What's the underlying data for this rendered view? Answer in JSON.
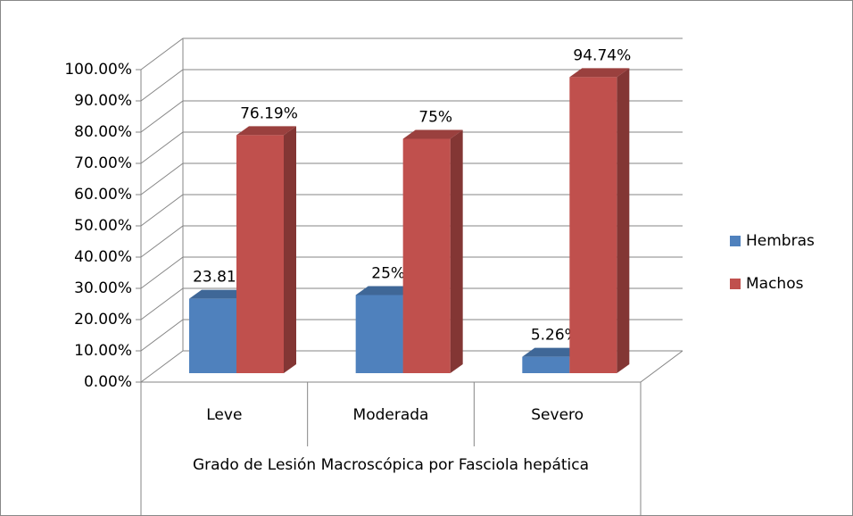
{
  "chart_data": {
    "type": "bar3d",
    "categories": [
      "Leve",
      "Moderada",
      "Severo"
    ],
    "series": [
      {
        "name": "Hembras",
        "color": "#4f81bd",
        "values": [
          23.81,
          25,
          5.26
        ],
        "value_labels": [
          "23.81%",
          "25%",
          "5.26%"
        ]
      },
      {
        "name": "Machos",
        "color": "#c0504d",
        "values": [
          76.19,
          75,
          94.74
        ],
        "value_labels": [
          "76.19%",
          "75%",
          "94.74%"
        ]
      }
    ],
    "x_label": "Grado de Lesión Macroscópica por Fasciola hepática",
    "ylim": [
      0,
      100
    ],
    "yticks": [
      {
        "value": 0,
        "label": "0.00%"
      },
      {
        "value": 10,
        "label": "10.00%"
      },
      {
        "value": 20,
        "label": "20.00%"
      },
      {
        "value": 30,
        "label": "30.00%"
      },
      {
        "value": 40,
        "label": "40.00%"
      },
      {
        "value": 50,
        "label": "50.00%"
      },
      {
        "value": 60,
        "label": "60.00%"
      },
      {
        "value": 70,
        "label": "70.00%"
      },
      {
        "value": 80,
        "label": "80.00%"
      },
      {
        "value": 90,
        "label": "90.00%"
      },
      {
        "value": 100,
        "label": "100.00%"
      }
    ],
    "grid": true,
    "legend": "right"
  }
}
